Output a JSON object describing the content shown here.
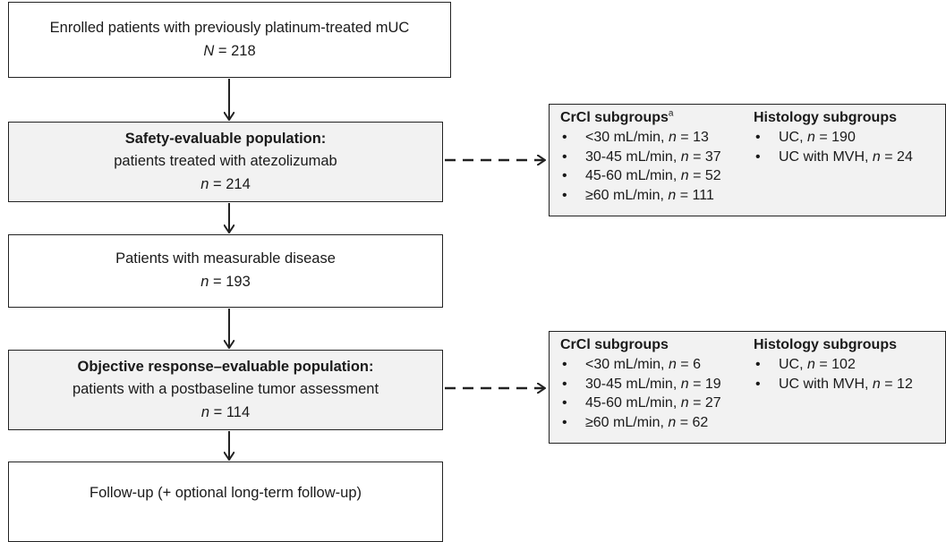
{
  "boxes": {
    "enrolled": {
      "line1": "Enrolled patients with previously platinum-treated mUC",
      "n_label": "N",
      "n_value": "218"
    },
    "safety": {
      "title": "Safety-evaluable population:",
      "line2": "patients treated with atezolizumab",
      "n_label": "n",
      "n_value": "214"
    },
    "measurable": {
      "line1": "Patients with measurable disease",
      "n_label": "n",
      "n_value": "193"
    },
    "objective": {
      "title": "Objective response–evaluable population:",
      "line2": "patients with a postbaseline tumor assessment",
      "n_label": "n",
      "n_value": "114"
    },
    "followup": {
      "line1": "Follow-up (+ optional long-term follow-up)"
    }
  },
  "panels": {
    "safety_subgroups": {
      "crcl_heading": "CrCl subgroups",
      "crcl_footnote": "a",
      "crcl_items": [
        {
          "range": "<30 mL/min, ",
          "n": "13"
        },
        {
          "range": "30-45 mL/min, ",
          "n": "37"
        },
        {
          "range": "45-60 mL/min, ",
          "n": "52"
        },
        {
          "range": "≥60 mL/min, ",
          "n": "111"
        }
      ],
      "histology_heading": "Histology subgroups",
      "histology_items": [
        {
          "label": "UC, ",
          "n": "190"
        },
        {
          "label": "UC with MVH, ",
          "n": "24"
        }
      ]
    },
    "objective_subgroups": {
      "crcl_heading": "CrCl subgroups",
      "crcl_footnote": "",
      "crcl_items": [
        {
          "range": "<30 mL/min, ",
          "n": "6"
        },
        {
          "range": "30-45 mL/min, ",
          "n": "19"
        },
        {
          "range": "45-60 mL/min, ",
          "n": "27"
        },
        {
          "range": "≥60 mL/min, ",
          "n": "62"
        }
      ],
      "histology_heading": "Histology subgroups",
      "histology_items": [
        {
          "label": "UC, ",
          "n": "102"
        },
        {
          "label": "UC with MVH, ",
          "n": "12"
        }
      ]
    }
  },
  "n_prefix": "n",
  "eq": " = "
}
